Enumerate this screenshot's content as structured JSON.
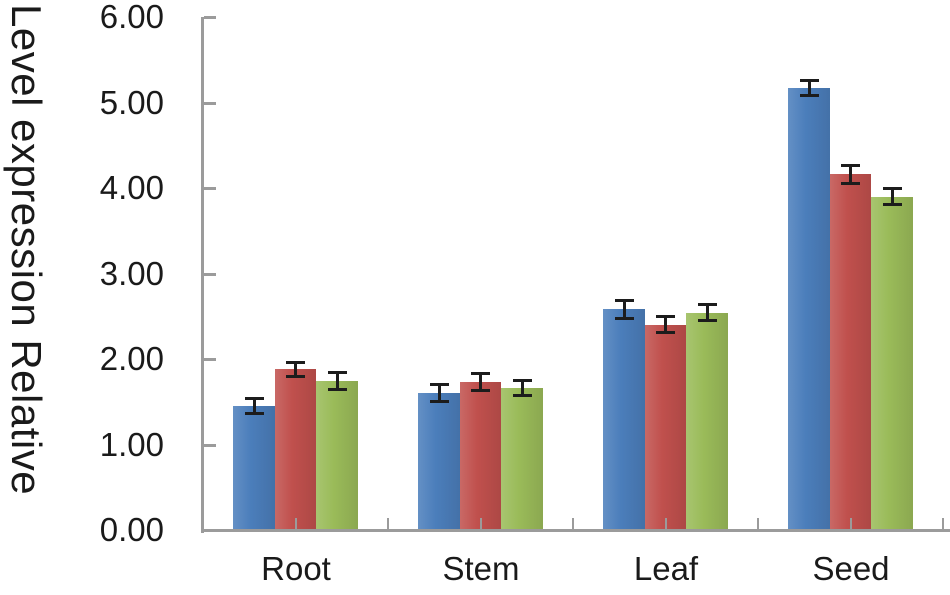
{
  "chart_data": {
    "type": "bar",
    "title": "",
    "ylabel": "Level expression Relative",
    "xlabel": "",
    "categories": [
      "Root",
      "Stem",
      "Leaf",
      "Seed"
    ],
    "series": [
      {
        "name": "blue",
        "color": "#4B7EBB",
        "values": [
          1.45,
          1.6,
          2.58,
          5.17
        ],
        "errors": [
          0.11,
          0.12,
          0.12,
          0.11
        ]
      },
      {
        "name": "red",
        "color": "#C0504D",
        "values": [
          1.88,
          1.73,
          2.4,
          4.16
        ],
        "errors": [
          0.1,
          0.12,
          0.11,
          0.12
        ]
      },
      {
        "name": "green",
        "color": "#9ABB59",
        "values": [
          1.74,
          1.66,
          2.54,
          3.9
        ],
        "errors": [
          0.12,
          0.11,
          0.11,
          0.11
        ]
      }
    ],
    "ylim": [
      0,
      6
    ],
    "ytick_labels": [
      "0.00",
      "1.00",
      "2.00",
      "3.00",
      "4.00",
      "5.00",
      "6.00"
    ],
    "error_bars": true,
    "grid": false,
    "legend": false,
    "colors": {
      "axis": "#9B9B9B",
      "text": "#1A1A1A",
      "error_bar": "#1C1C1C",
      "background": "#FFFFFF"
    }
  }
}
